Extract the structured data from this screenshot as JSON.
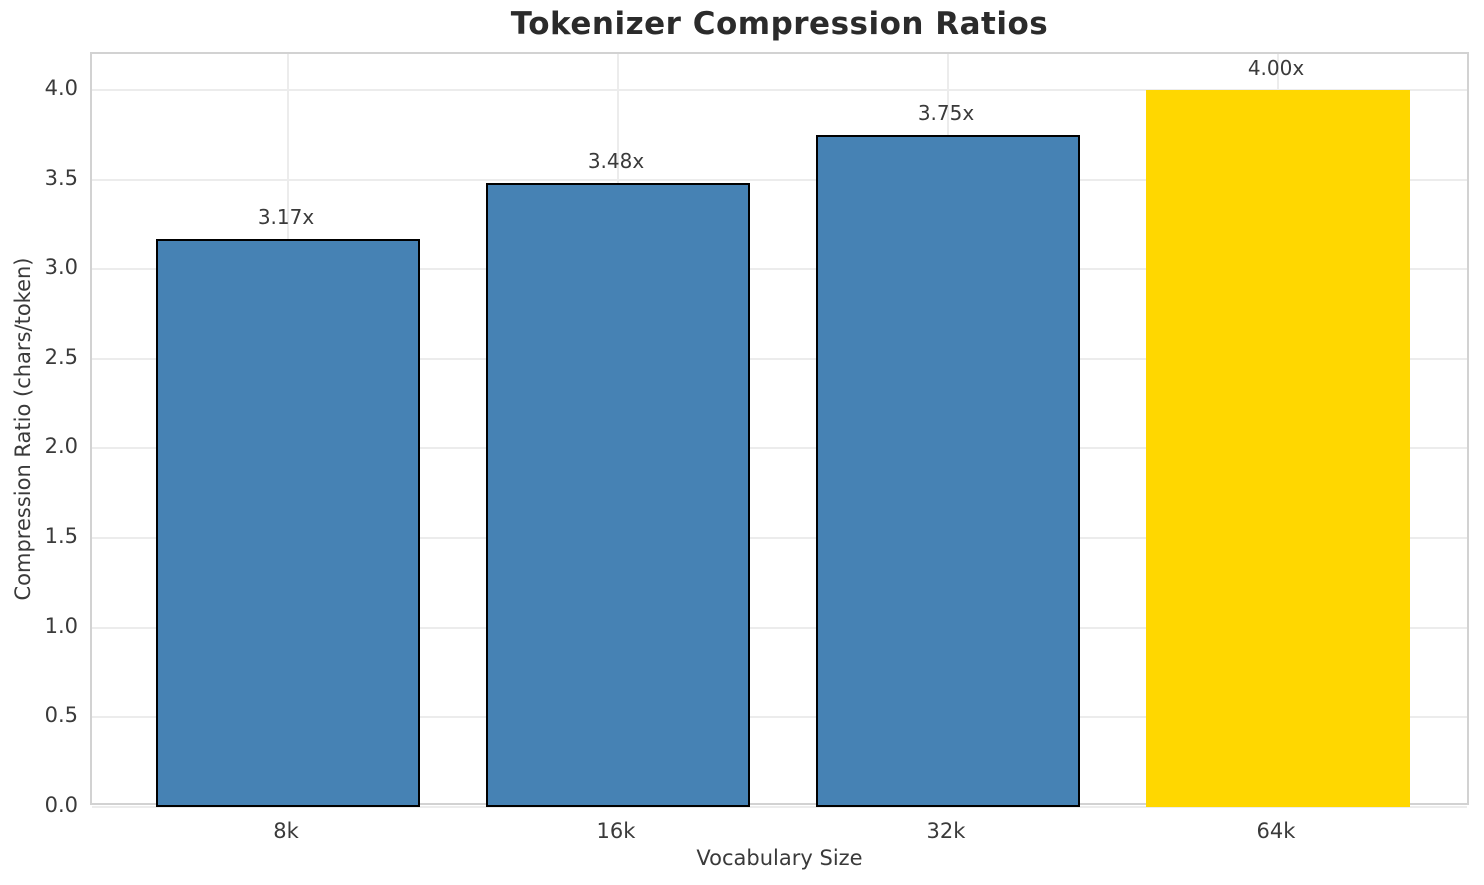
{
  "chart_data": {
    "type": "bar",
    "title": "Tokenizer Compression Ratios",
    "xlabel": "Vocabulary Size",
    "ylabel": "Compression Ratio (chars/token)",
    "categories": [
      "8k",
      "16k",
      "32k",
      "64k"
    ],
    "values": [
      3.17,
      3.48,
      3.75,
      4.0
    ],
    "bar_labels": [
      "3.17x",
      "3.48x",
      "3.75x",
      "4.00x"
    ],
    "bar_colors": [
      "#4682b4",
      "#4682b4",
      "#4682b4",
      "#ffd700"
    ],
    "bar_edge_colors": [
      "#000000",
      "#000000",
      "#000000",
      null
    ],
    "ylim": [
      0,
      4.2
    ],
    "yticks": [
      0.0,
      0.5,
      1.0,
      1.5,
      2.0,
      2.5,
      3.0,
      3.5,
      4.0
    ],
    "ytick_labels": [
      "0.0",
      "0.5",
      "1.0",
      "1.5",
      "2.0",
      "2.5",
      "3.0",
      "3.5",
      "4.0"
    ],
    "grid": true,
    "legend": false,
    "colors": {
      "grid": "#ececec",
      "spine": "#d2d2d2",
      "tick_text": "#3a3a3a",
      "title_text": "#2b2b2b",
      "background": "#ffffff"
    }
  }
}
